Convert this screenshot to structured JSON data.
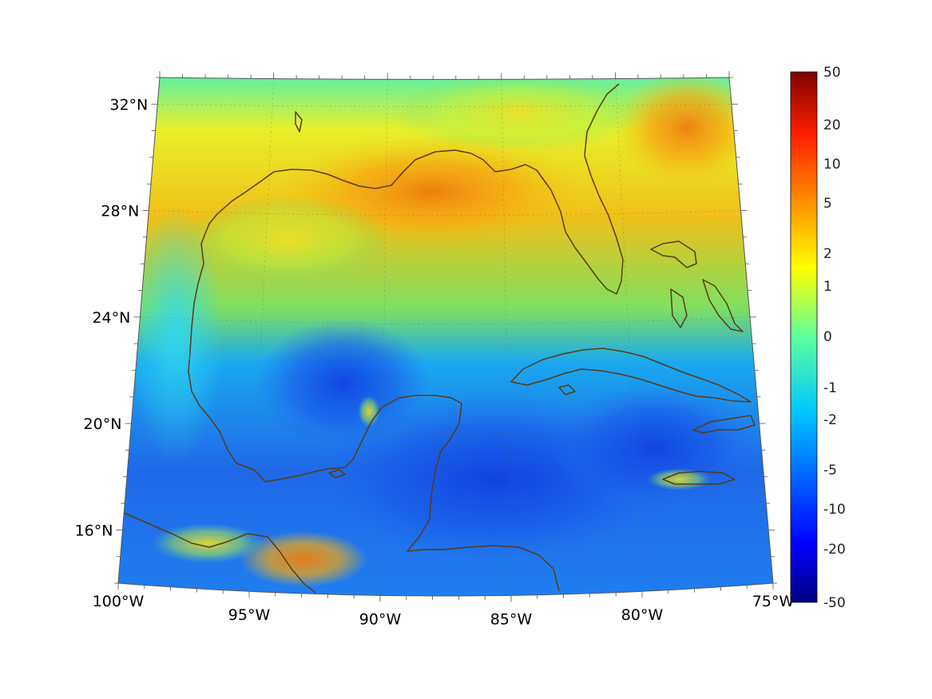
{
  "map": {
    "lon_range": [
      -100,
      -75
    ],
    "lat_range": [
      14,
      33
    ],
    "projection": "conic",
    "grid": true,
    "coastline_color": "#5a3b12",
    "lon_ticks": [
      {
        "value": -100,
        "label": "100°W"
      },
      {
        "value": -95,
        "label": "95°W"
      },
      {
        "value": -90,
        "label": "90°W"
      },
      {
        "value": -85,
        "label": "85°W"
      },
      {
        "value": -80,
        "label": "80°W"
      },
      {
        "value": -75,
        "label": "75°W"
      }
    ],
    "lat_ticks": [
      {
        "value": 32,
        "label": "32°N"
      },
      {
        "value": 28,
        "label": "28°N"
      },
      {
        "value": 24,
        "label": "24°N"
      },
      {
        "value": 20,
        "label": "20°N"
      },
      {
        "value": 16,
        "label": "16°N"
      }
    ]
  },
  "colorbar": {
    "colormap": "jet",
    "placement": "right",
    "labels": [
      "50",
      "20",
      "10",
      "5",
      "2",
      "1",
      "0",
      "-1",
      "-2",
      "-5",
      "-10",
      "-20",
      "-50"
    ]
  }
}
